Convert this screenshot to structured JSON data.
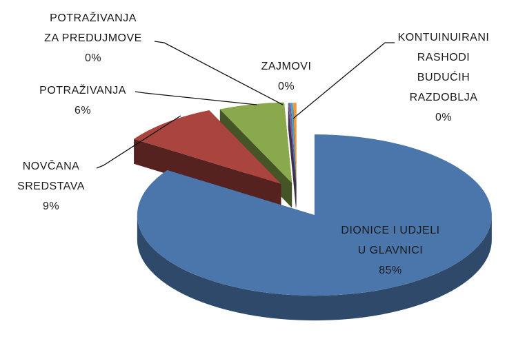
{
  "chart_data": {
    "type": "pie3d",
    "categories": [
      "DIONICE I UDJELI U GLAVNICI",
      "NOVČANA SREDSTAVA",
      "POTRAŽIVANJA",
      "POTRAŽIVANJA ZA PREDUJMOVE",
      "ZAJMOVI",
      "KONTUINUIRANI RASHODI BUDUĆIH RAZDOBLJA"
    ],
    "values": [
      85,
      9,
      6,
      0.2,
      0.2,
      0.3
    ],
    "value_labels": [
      "85%",
      "9%",
      "6%",
      "0%",
      "0%",
      "0%"
    ],
    "colors": [
      "#4a76ab",
      "#a9443f",
      "#8aa94c",
      "#7b5e9e",
      "#4aa5c2",
      "#f0963c"
    ]
  }
}
